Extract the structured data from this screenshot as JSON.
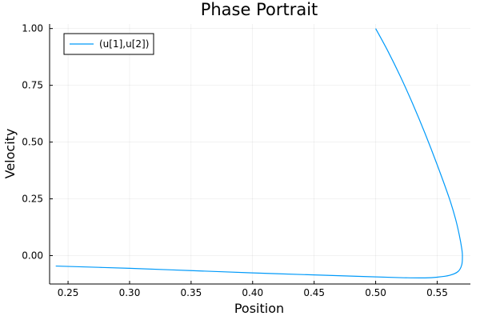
{
  "chart_data": {
    "type": "line",
    "title": "Phase Portrait",
    "xlabel": "Position",
    "ylabel": "Velocity",
    "xlim": [
      0.235,
      0.577
    ],
    "ylim": [
      -0.125,
      1.02
    ],
    "xticks": [
      0.25,
      0.3,
      0.35,
      0.4,
      0.45,
      0.5,
      0.55
    ],
    "xtick_labels": [
      "0.25",
      "0.30",
      "0.35",
      "0.40",
      "0.45",
      "0.50",
      "0.55"
    ],
    "yticks": [
      0.0,
      0.25,
      0.5,
      0.75,
      1.0
    ],
    "ytick_labels": [
      "0.00",
      "0.25",
      "0.50",
      "0.75",
      "1.00"
    ],
    "grid": true,
    "legend_position": "top-left",
    "series": [
      {
        "name": "(u[1],u[2])",
        "color": "#009AFA",
        "x": [
          0.5,
          0.51,
          0.52,
          0.53,
          0.54,
          0.55,
          0.56,
          0.565,
          0.568,
          0.57,
          0.5705,
          0.57,
          0.567,
          0.56,
          0.55,
          0.54,
          0.52,
          0.49,
          0.45,
          0.4,
          0.35,
          0.3,
          0.24
        ],
        "y": [
          1.0,
          0.9,
          0.79,
          0.67,
          0.54,
          0.4,
          0.25,
          0.16,
          0.09,
          0.03,
          0.0,
          -0.04,
          -0.07,
          -0.087,
          -0.095,
          -0.098,
          -0.097,
          -0.092,
          -0.085,
          -0.076,
          -0.066,
          -0.056,
          -0.046
        ]
      }
    ]
  }
}
